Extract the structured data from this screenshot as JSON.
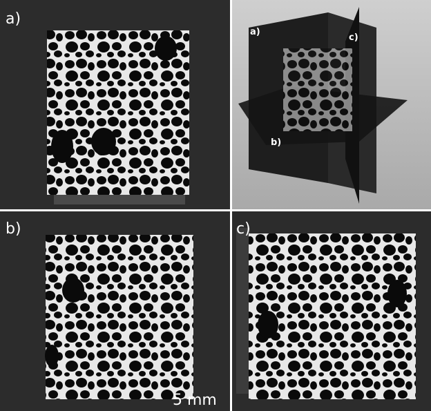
{
  "panels": [
    {
      "label": "a)"
    },
    {
      "label": "b)",
      "scale_bar": "5 mm"
    },
    {
      "label": "c)"
    }
  ],
  "inset": {
    "labels": [
      "a)",
      "b)",
      "c)"
    ]
  }
}
